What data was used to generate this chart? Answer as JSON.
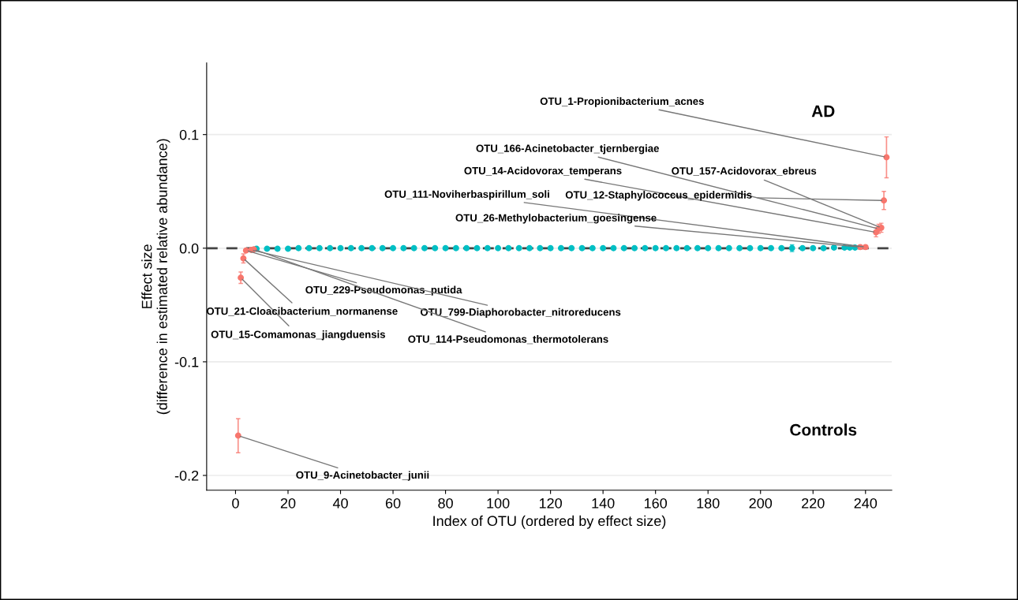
{
  "chart_data": {
    "type": "scatter",
    "xlabel": "Index of OTU (ordered by effect size)",
    "ylabel": "Effect size\n(difference in estimated relative abundance)",
    "xlim": [
      -11,
      250
    ],
    "xticks": [
      0,
      20,
      40,
      60,
      80,
      100,
      120,
      140,
      160,
      180,
      200,
      220,
      240
    ],
    "ylim": [
      -0.213,
      0.163
    ],
    "yticks": [
      {
        "value": 0.1,
        "label": "0.1"
      },
      {
        "value": 0.0,
        "label": "0.0"
      },
      {
        "value": -0.1,
        "label": "-0.1"
      },
      {
        "value": -0.2,
        "label": "-0.2"
      }
    ],
    "grid": "y",
    "marker": "circle",
    "ref_lines": [
      {
        "axis": "y",
        "value": 0,
        "color": "#444444",
        "line_style": "dashed"
      }
    ],
    "series": [
      {
        "color": "#00bfc4",
        "x": [
          8,
          12,
          16,
          20,
          24,
          28,
          32,
          36,
          40,
          44,
          48,
          52,
          56,
          60,
          64,
          68,
          72,
          76,
          80,
          84,
          88,
          92,
          96,
          100,
          104,
          108,
          112,
          116,
          120,
          124,
          128,
          132,
          136,
          140,
          144,
          148,
          152,
          156,
          160,
          164,
          168,
          172,
          176,
          180,
          184,
          188,
          192,
          196,
          200,
          204,
          208,
          212,
          216,
          220,
          224,
          228,
          232,
          234,
          236
        ],
        "values": [
          -0.0005,
          -0.0005,
          -0.0005,
          -0.0005,
          0,
          0,
          0,
          0,
          0,
          0,
          0,
          0,
          0,
          0,
          0,
          0,
          0,
          0,
          0,
          0,
          0,
          0,
          0,
          0,
          0,
          0,
          0,
          0,
          0,
          0,
          0,
          0,
          0,
          0,
          0,
          0,
          0,
          0,
          0,
          0,
          0,
          0,
          0,
          0,
          0,
          0,
          0,
          0,
          0,
          0,
          0,
          0,
          0,
          0,
          0,
          0.0005,
          0.0005,
          0.0005,
          0.0005
        ],
        "errors": [
          0.001,
          0.001,
          0.001,
          0.001,
          0.001,
          0.001,
          0.001,
          0.001,
          0.001,
          0.001,
          0.001,
          0.001,
          0.001,
          0.001,
          0.001,
          0.001,
          0.001,
          0.001,
          0.001,
          0.001,
          0.001,
          0.001,
          0.001,
          0.001,
          0.001,
          0.001,
          0.001,
          0.001,
          0.001,
          0.001,
          0.001,
          0.001,
          0.001,
          0.001,
          0.001,
          0.001,
          0.001,
          0.001,
          0.001,
          0.001,
          0.001,
          0.001,
          0.001,
          0.001,
          0.001,
          0.001,
          0.001,
          0.001,
          0.001,
          0.001,
          0.001,
          0.003,
          0.001,
          0.001,
          0.001,
          0.001,
          0.001,
          0.001,
          0.001
        ]
      },
      {
        "color": "#f8766d",
        "x": [
          1,
          2,
          3,
          4,
          6,
          7,
          238,
          240,
          244,
          245,
          246,
          247,
          248
        ],
        "values": [
          -0.165,
          -0.026,
          -0.009,
          -0.002,
          -0.0015,
          -0.001,
          0.001,
          0.001,
          0.014,
          0.017,
          0.018,
          0.042,
          0.08
        ],
        "errors": [
          [
            -0.18,
            -0.15
          ],
          [
            -0.031,
            -0.021
          ],
          [
            -0.013,
            -0.005
          ],
          0.001,
          0.001,
          0.001,
          0.001,
          0.001,
          [
            0.01,
            0.018
          ],
          [
            0.013,
            0.021
          ],
          [
            0.014,
            0.022
          ],
          [
            0.034,
            0.05
          ],
          [
            0.062,
            0.098
          ]
        ]
      }
    ],
    "annotations": [
      {
        "text": "OTU_1-Propionibacterium_acnes",
        "x": 248,
        "y": 0.08
      },
      {
        "text": "OTU_166-Acinetobacter_tjernbergiae",
        "x": 245,
        "y": 0.017
      },
      {
        "text": "OTU_14-Acidovorax_temperans",
        "x": 244,
        "y": 0.014
      },
      {
        "text": "OTU_157-Acidovorax_ebreus",
        "x": 246,
        "y": 0.018
      },
      {
        "text": "OTU_111-Noviherbaspirillum_soli",
        "x": 240,
        "y": 0.001
      },
      {
        "text": "OTU_12-Staphylococcus_epidermidis",
        "x": 247,
        "y": 0.042
      },
      {
        "text": "OTU_26-Methylobacterium_goesingense",
        "x": 238,
        "y": 0.001
      },
      {
        "text": "OTU_9-Acinetobacter_junii",
        "x": 1,
        "y": -0.165
      },
      {
        "text": "OTU_15-Comamonas_jiangduensis",
        "x": 2,
        "y": -0.026
      },
      {
        "text": "OTU_21-Cloacibacterium_normanense",
        "x": 3,
        "y": -0.009
      },
      {
        "text": "OTU_229-Pseudomonas_putida",
        "x": 4,
        "y": -0.002
      },
      {
        "text": "OTU_799-Diaphorobacter_nitroreducens",
        "x": 6,
        "y": -0.0015
      },
      {
        "text": "OTU_114-Pseudomonas_thermotolerans",
        "x": 7,
        "y": -0.001
      },
      "AD",
      "Controls"
    ]
  }
}
